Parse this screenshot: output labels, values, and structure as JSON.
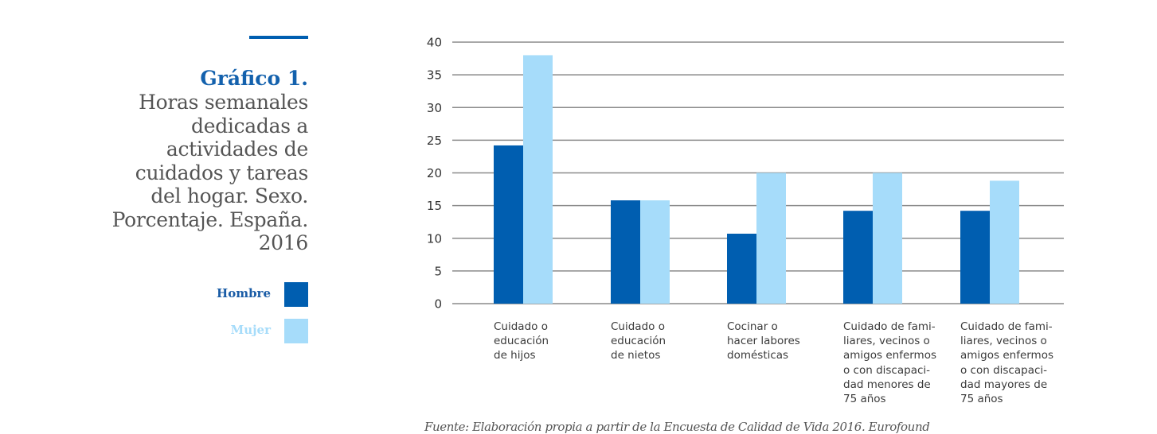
{
  "title": {
    "label": "Gráfico 1.",
    "lines": [
      "Horas semanales",
      "dedicadas a",
      "actividades de",
      "cuidados y tareas",
      "del hogar. Sexo.",
      "Porcentaje. España.",
      "2016"
    ]
  },
  "legend": [
    {
      "label": "Hombre",
      "color": "#005eb0",
      "text_color": "#1a5ca6"
    },
    {
      "label": "Mujer",
      "color": "#a6dcfa",
      "text_color": "#a6dcfa"
    }
  ],
  "source": "Fuente: Elaboración propia a partir de la Encuesta de Calidad de Vida 2016. Eurofound",
  "chart_data": {
    "type": "bar",
    "title": "Horas semanales dedicadas a actividades de cuidados y tareas del hogar. Sexo. Porcentaje. España. 2016",
    "xlabel": "",
    "ylabel": "",
    "ylim": [
      0,
      40
    ],
    "yticks": [
      0,
      5,
      10,
      15,
      20,
      25,
      30,
      35,
      40
    ],
    "grid": true,
    "legend_position": "left",
    "categories": [
      [
        "Cuidado o",
        "educación",
        "de hijos"
      ],
      [
        "Cuidado o",
        "educación",
        "de nietos"
      ],
      [
        "Cocinar o",
        "hacer labores",
        "domésticas"
      ],
      [
        "Cuidado de fami-",
        "liares, vecinos o",
        "amigos enfermos",
        "o con discapaci-",
        "dad menores de",
        "75 años"
      ],
      [
        "Cuidado de fami-",
        "liares, vecinos o",
        "amigos enfermos",
        "o con discapaci-",
        "dad mayores de",
        "75 años"
      ]
    ],
    "series": [
      {
        "name": "Hombre",
        "color": "#005eb0",
        "values": [
          24.2,
          15.8,
          10.7,
          14.2,
          14.2
        ]
      },
      {
        "name": "Mujer",
        "color": "#a6dcfa",
        "values": [
          38.0,
          15.8,
          20.0,
          20.0,
          18.8
        ]
      }
    ]
  }
}
